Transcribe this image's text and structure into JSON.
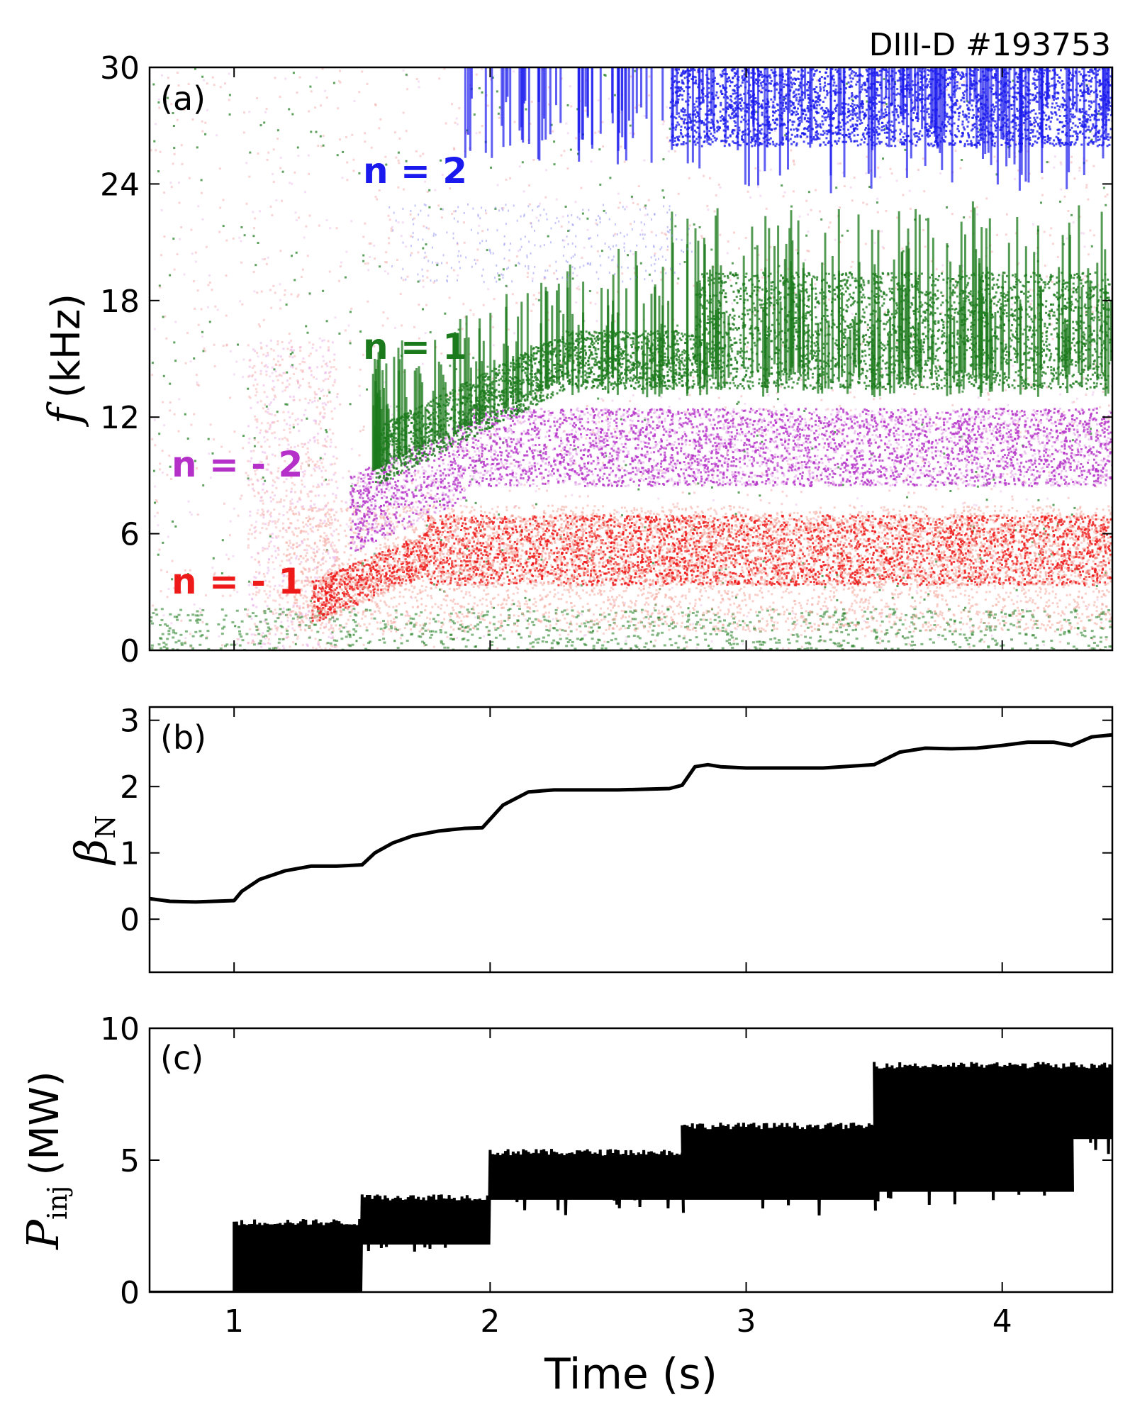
{
  "chart_data": {
    "title": "DIII-D #193753",
    "xlabel": "Time (s)",
    "xlim": [
      0.67,
      4.43
    ],
    "xticks": [
      1,
      2,
      3,
      4
    ],
    "panels": [
      {
        "id": "a",
        "panel_label": "(a)",
        "type": "spectrogram",
        "ylabel": "f (kHz)",
        "ylabel_symbol": "f",
        "ylabel_rest": "(kHz)",
        "ylim": [
          0,
          30
        ],
        "yticks": [
          0,
          6,
          12,
          18,
          24,
          30
        ],
        "modes": [
          {
            "label": "n = 2",
            "color": "#1a1aee",
            "t_start": 1.85,
            "freq_khz": [
              26,
              30
            ]
          },
          {
            "label": "n = 1",
            "color": "#1b7a1b",
            "t_start": 1.5,
            "freq_khz": [
              9,
              20
            ]
          },
          {
            "label": "n = - 2",
            "color": "#b430c8",
            "t_start": 1.45,
            "freq_khz": [
              8,
              12
            ]
          },
          {
            "label": "n = - 1",
            "color": "#ee1a1a",
            "t_start": 1.35,
            "freq_khz": [
              2,
              7
            ]
          }
        ]
      },
      {
        "id": "b",
        "panel_label": "(b)",
        "type": "line",
        "ylabel": "βN",
        "ylabel_symbol": "β",
        "ylabel_sub": "N",
        "ylim": [
          -0.8,
          3.2
        ],
        "yticks": [
          0,
          1,
          2,
          3
        ],
        "series": [
          {
            "name": "beta_N",
            "color": "#000000",
            "x": [
              0.67,
              0.75,
              0.85,
              1.0,
              1.03,
              1.1,
              1.2,
              1.3,
              1.4,
              1.5,
              1.55,
              1.62,
              1.7,
              1.8,
              1.9,
              1.97,
              2.05,
              2.15,
              2.25,
              2.5,
              2.7,
              2.75,
              2.8,
              2.85,
              2.9,
              3.0,
              3.3,
              3.5,
              3.6,
              3.7,
              3.8,
              3.9,
              4.0,
              4.1,
              4.2,
              4.27,
              4.35,
              4.43
            ],
            "y": [
              0.31,
              0.27,
              0.26,
              0.28,
              0.42,
              0.6,
              0.73,
              0.8,
              0.8,
              0.82,
              1.0,
              1.15,
              1.26,
              1.33,
              1.37,
              1.38,
              1.72,
              1.92,
              1.95,
              1.95,
              1.97,
              2.02,
              2.3,
              2.33,
              2.3,
              2.28,
              2.28,
              2.33,
              2.52,
              2.58,
              2.57,
              2.58,
              2.62,
              2.67,
              2.67,
              2.62,
              2.75,
              2.78
            ]
          }
        ]
      },
      {
        "id": "c",
        "panel_label": "(c)",
        "type": "step-modulated",
        "ylabel": "Pinj (MW)",
        "ylabel_symbol": "P",
        "ylabel_sub": "inj",
        "ylabel_rest": "(MW)",
        "ylim": [
          0,
          10
        ],
        "yticks": [
          0,
          5,
          10
        ],
        "segments": [
          {
            "t0": 0.67,
            "t1": 1.0,
            "min": 0,
            "max": 0
          },
          {
            "t0": 1.0,
            "t1": 1.5,
            "min": 0,
            "max": 2.65
          },
          {
            "t0": 1.5,
            "t1": 2.0,
            "min": 1.8,
            "max": 3.6
          },
          {
            "t0": 2.0,
            "t1": 2.75,
            "min": 3.5,
            "max": 5.3
          },
          {
            "t0": 2.75,
            "t1": 3.5,
            "min": 3.5,
            "max": 6.3
          },
          {
            "t0": 3.5,
            "t1": 4.27,
            "min": 3.8,
            "max": 8.6
          },
          {
            "t0": 4.27,
            "t1": 4.43,
            "min": 5.8,
            "max": 8.6
          }
        ]
      }
    ]
  }
}
